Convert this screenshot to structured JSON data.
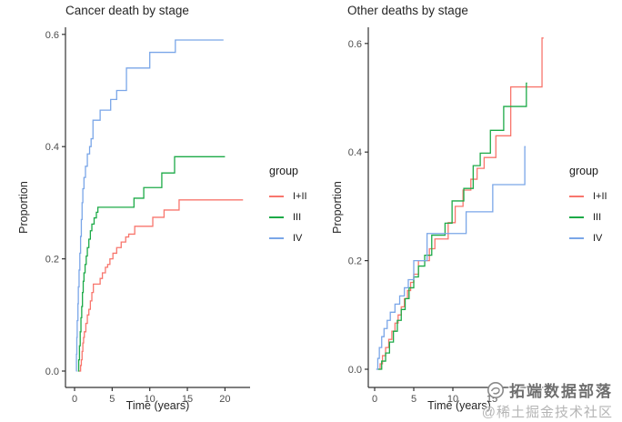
{
  "watermark": {
    "line1": "拓端数据部落",
    "line2": "@稀土掘金技术社区",
    "logo_icon": "swirl-circle-logo"
  },
  "colors": {
    "axis": "#333333",
    "tick_text": "#4d4d4d",
    "red": "#F8766D",
    "green": "#1CAA47",
    "blue": "#7AA6E8"
  },
  "chart_data": [
    {
      "type": "line",
      "interpolation": "step-after",
      "title": "Cancer death by stage",
      "xlabel": "Time (years)",
      "ylabel": "Proportion",
      "xlim": [
        0,
        23
      ],
      "ylim": [
        0,
        0.62
      ],
      "grid": false,
      "xticks": [
        0,
        5,
        10,
        15,
        20
      ],
      "xtick_labels": [
        "0",
        "5",
        "10",
        "15",
        "20"
      ],
      "yticks": [
        0,
        0.2,
        0.4,
        0.6
      ],
      "ytick_labels": [
        "0.0",
        "0.2",
        "0.4",
        "0.6"
      ],
      "legend_title": "group",
      "legend_position": "right",
      "series": [
        {
          "name": "I+II",
          "color": "#F8766D",
          "points": [
            [
              0.6,
              0
            ],
            [
              0.8,
              0.01
            ],
            [
              0.9,
              0.02
            ],
            [
              1.0,
              0.035
            ],
            [
              1.1,
              0.05
            ],
            [
              1.2,
              0.06
            ],
            [
              1.3,
              0.07
            ],
            [
              1.5,
              0.085
            ],
            [
              1.7,
              0.1
            ],
            [
              1.9,
              0.11
            ],
            [
              2.1,
              0.125
            ],
            [
              2.3,
              0.14
            ],
            [
              2.5,
              0.155
            ],
            [
              3.4,
              0.165
            ],
            [
              3.7,
              0.175
            ],
            [
              4.1,
              0.185
            ],
            [
              4.4,
              0.19
            ],
            [
              4.7,
              0.2
            ],
            [
              5.1,
              0.21
            ],
            [
              5.6,
              0.22
            ],
            [
              6.2,
              0.23
            ],
            [
              6.8,
              0.239
            ],
            [
              7.2,
              0.244
            ],
            [
              8.0,
              0.258
            ],
            [
              10.4,
              0.274
            ],
            [
              11.9,
              0.287
            ],
            [
              13.9,
              0.305
            ],
            [
              22.4,
              0.305
            ]
          ]
        },
        {
          "name": "III",
          "color": "#1CAA47",
          "points": [
            [
              0.45,
              0
            ],
            [
              0.55,
              0.02
            ],
            [
              0.65,
              0.045
            ],
            [
              0.75,
              0.07
            ],
            [
              0.85,
              0.095
            ],
            [
              0.95,
              0.115
            ],
            [
              1.05,
              0.14
            ],
            [
              1.15,
              0.16
            ],
            [
              1.25,
              0.175
            ],
            [
              1.4,
              0.19
            ],
            [
              1.55,
              0.205
            ],
            [
              1.7,
              0.22
            ],
            [
              1.9,
              0.235
            ],
            [
              2.1,
              0.25
            ],
            [
              2.3,
              0.262
            ],
            [
              2.6,
              0.273
            ],
            [
              2.9,
              0.283
            ],
            [
              3.1,
              0.292
            ],
            [
              7.9,
              0.308
            ],
            [
              9.2,
              0.327
            ],
            [
              11.6,
              0.353
            ],
            [
              13.3,
              0.382
            ],
            [
              20.0,
              0.382
            ]
          ]
        },
        {
          "name": "IV",
          "color": "#7AA6E8",
          "points": [
            [
              0.2,
              0
            ],
            [
              0.25,
              0.03
            ],
            [
              0.3,
              0.06
            ],
            [
              0.35,
              0.09
            ],
            [
              0.45,
              0.12
            ],
            [
              0.5,
              0.15
            ],
            [
              0.6,
              0.18
            ],
            [
              0.7,
              0.21
            ],
            [
              0.8,
              0.24
            ],
            [
              0.9,
              0.27
            ],
            [
              1.0,
              0.3
            ],
            [
              1.1,
              0.325
            ],
            [
              1.25,
              0.345
            ],
            [
              1.45,
              0.365
            ],
            [
              1.7,
              0.387
            ],
            [
              2.0,
              0.4
            ],
            [
              2.2,
              0.414
            ],
            [
              2.45,
              0.447
            ],
            [
              3.4,
              0.465
            ],
            [
              4.8,
              0.484
            ],
            [
              5.6,
              0.5
            ],
            [
              6.9,
              0.54
            ],
            [
              10.0,
              0.568
            ],
            [
              13.4,
              0.59
            ],
            [
              19.8,
              0.59
            ]
          ]
        }
      ]
    },
    {
      "type": "line",
      "interpolation": "step-after",
      "title": "Other deaths by stage",
      "xlabel": "Time (years)",
      "ylabel": "Proportion",
      "xlim": [
        0,
        22.5
      ],
      "ylim": [
        0,
        0.63
      ],
      "grid": false,
      "xticks": [
        0,
        5,
        10,
        15
      ],
      "xtick_labels": [
        "0",
        "5",
        "10",
        "15"
      ],
      "yticks": [
        0,
        0.2,
        0.4,
        0.6
      ],
      "ytick_labels": [
        "0.0",
        "0.2",
        "0.4",
        "0.6"
      ],
      "legend_title": "group",
      "legend_position": "right",
      "series": [
        {
          "name": "I+II",
          "color": "#F8766D",
          "points": [
            [
              0.3,
              0
            ],
            [
              0.7,
              0.01
            ],
            [
              1.0,
              0.025
            ],
            [
              1.4,
              0.04
            ],
            [
              1.8,
              0.055
            ],
            [
              2.2,
              0.07
            ],
            [
              2.6,
              0.085
            ],
            [
              3.0,
              0.1
            ],
            [
              3.4,
              0.115
            ],
            [
              3.8,
              0.13
            ],
            [
              4.2,
              0.145
            ],
            [
              4.6,
              0.16
            ],
            [
              5.0,
              0.175
            ],
            [
              5.6,
              0.2
            ],
            [
              7.0,
              0.222
            ],
            [
              7.7,
              0.24
            ],
            [
              9.4,
              0.27
            ],
            [
              10.3,
              0.3
            ],
            [
              11.3,
              0.33
            ],
            [
              12.3,
              0.35
            ],
            [
              13.1,
              0.37
            ],
            [
              14.0,
              0.39
            ],
            [
              15.5,
              0.43
            ],
            [
              17.4,
              0.52
            ],
            [
              21.4,
              0.61
            ],
            [
              21.6,
              0.61
            ]
          ]
        },
        {
          "name": "III",
          "color": "#1CAA47",
          "points": [
            [
              0.4,
              0
            ],
            [
              0.9,
              0.015
            ],
            [
              1.4,
              0.03
            ],
            [
              1.9,
              0.05
            ],
            [
              2.4,
              0.07
            ],
            [
              2.9,
              0.09
            ],
            [
              3.4,
              0.11
            ],
            [
              3.9,
              0.13
            ],
            [
              4.4,
              0.15
            ],
            [
              5.0,
              0.17
            ],
            [
              5.6,
              0.19
            ],
            [
              6.4,
              0.21
            ],
            [
              7.3,
              0.247
            ],
            [
              9.0,
              0.269
            ],
            [
              9.9,
              0.31
            ],
            [
              11.4,
              0.333
            ],
            [
              12.6,
              0.375
            ],
            [
              13.5,
              0.398
            ],
            [
              14.8,
              0.44
            ],
            [
              16.5,
              0.484
            ],
            [
              19.4,
              0.527
            ],
            [
              19.5,
              0.527
            ]
          ]
        },
        {
          "name": "IV",
          "color": "#7AA6E8",
          "points": [
            [
              0.2,
              0
            ],
            [
              0.4,
              0.02
            ],
            [
              0.6,
              0.04
            ],
            [
              0.9,
              0.06
            ],
            [
              1.2,
              0.075
            ],
            [
              1.6,
              0.09
            ],
            [
              2.0,
              0.105
            ],
            [
              2.6,
              0.12
            ],
            [
              3.2,
              0.135
            ],
            [
              3.8,
              0.15
            ],
            [
              4.3,
              0.165
            ],
            [
              5.0,
              0.2
            ],
            [
              6.7,
              0.25
            ],
            [
              11.7,
              0.29
            ],
            [
              15.1,
              0.34
            ],
            [
              19.2,
              0.41
            ],
            [
              19.3,
              0.41
            ]
          ]
        }
      ]
    }
  ]
}
